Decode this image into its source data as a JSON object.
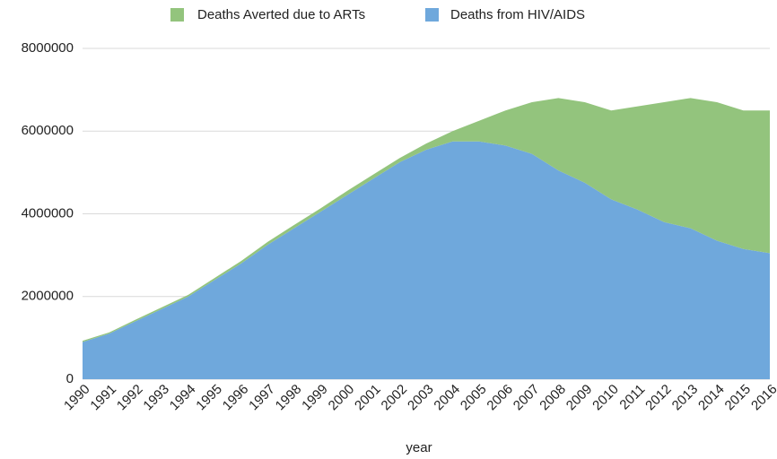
{
  "chart_data": {
    "type": "stacked_area",
    "x_label": "year",
    "categories": [
      "1990",
      "1991",
      "1992",
      "1993",
      "1994",
      "1995",
      "1996",
      "1997",
      "1998",
      "1999",
      "2000",
      "2001",
      "2002",
      "2003",
      "2004",
      "2005",
      "2006",
      "2007",
      "2008",
      "2009",
      "2010",
      "2011",
      "2012",
      "2013",
      "2014",
      "2015",
      "2016"
    ],
    "series": [
      {
        "name": "Deaths Averted due to ARTs",
        "color": "#93c47d",
        "values": [
          30000,
          30000,
          40000,
          40000,
          40000,
          50000,
          60000,
          70000,
          80000,
          80000,
          100000,
          100000,
          100000,
          150000,
          250000,
          500000,
          850000,
          1250000,
          1750000,
          1950000,
          2150000,
          2500000,
          2900000,
          3150000,
          3350000,
          3350000,
          3450000
        ]
      },
      {
        "name": "Deaths from HIV/AIDS",
        "color": "#6fa8dc",
        "values": [
          900000,
          1100000,
          1400000,
          1700000,
          2000000,
          2400000,
          2800000,
          3250000,
          3650000,
          4050000,
          4450000,
          4850000,
          5250000,
          5550000,
          5750000,
          5750000,
          5650000,
          5450000,
          5050000,
          4750000,
          4350000,
          4100000,
          3800000,
          3650000,
          3350000,
          3150000,
          3050000
        ]
      }
    ],
    "ylim": [
      0,
      8000000
    ],
    "yticks": [
      0,
      2000000,
      4000000,
      6000000,
      8000000
    ],
    "grid": true,
    "legend": "top"
  }
}
